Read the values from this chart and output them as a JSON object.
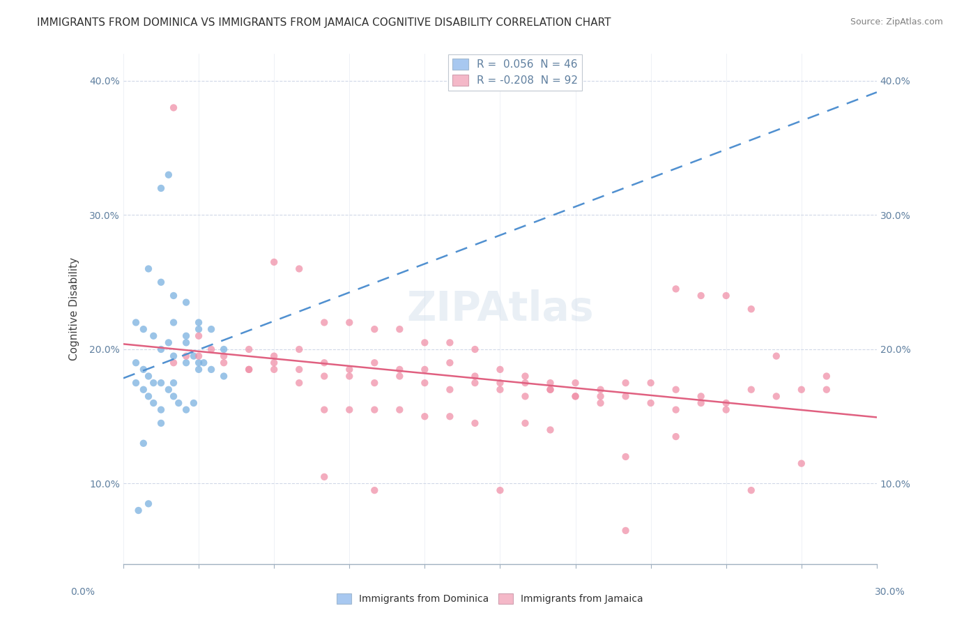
{
  "title": "IMMIGRANTS FROM DOMINICA VS IMMIGRANTS FROM JAMAICA COGNITIVE DISABILITY CORRELATION CHART",
  "source": "Source: ZipAtlas.com",
  "ylabel_label": "Cognitive Disability",
  "ylabel_labels": [
    "10.0%",
    "20.0%",
    "30.0%",
    "40.0%"
  ],
  "ylabel_values": [
    0.1,
    0.2,
    0.3,
    0.4
  ],
  "xlim": [
    0.0,
    0.3
  ],
  "ylim": [
    0.04,
    0.42
  ],
  "legend1_label": "R =  0.056  N = 46",
  "legend2_label": "R = -0.208  N = 92",
  "legend1_color": "#a8c8f0",
  "legend2_color": "#f4b8c8",
  "series1_color": "#7ab0e0",
  "series2_color": "#f090a8",
  "trendline1_color": "#5090d0",
  "trendline2_color": "#e06080",
  "watermark": "ZIPAtlas",
  "background_color": "#ffffff",
  "grid_color": "#d0d8e8",
  "axis_color": "#6080a0",
  "title_color": "#303030",
  "source_color": "#808080",
  "bottom_legend1": "Immigrants from Dominica",
  "bottom_legend2": "Immigrants from Jamaica",
  "dominica_points": [
    [
      0.02,
      0.22
    ],
    [
      0.025,
      0.21
    ],
    [
      0.03,
      0.215
    ],
    [
      0.035,
      0.215
    ],
    [
      0.04,
      0.2
    ],
    [
      0.01,
      0.26
    ],
    [
      0.015,
      0.25
    ],
    [
      0.02,
      0.24
    ],
    [
      0.025,
      0.235
    ],
    [
      0.03,
      0.22
    ],
    [
      0.005,
      0.22
    ],
    [
      0.008,
      0.215
    ],
    [
      0.012,
      0.21
    ],
    [
      0.015,
      0.2
    ],
    [
      0.018,
      0.205
    ],
    [
      0.02,
      0.195
    ],
    [
      0.025,
      0.19
    ],
    [
      0.028,
      0.195
    ],
    [
      0.03,
      0.185
    ],
    [
      0.032,
      0.19
    ],
    [
      0.005,
      0.19
    ],
    [
      0.008,
      0.185
    ],
    [
      0.01,
      0.18
    ],
    [
      0.012,
      0.175
    ],
    [
      0.015,
      0.175
    ],
    [
      0.018,
      0.17
    ],
    [
      0.02,
      0.165
    ],
    [
      0.022,
      0.16
    ],
    [
      0.025,
      0.155
    ],
    [
      0.028,
      0.16
    ],
    [
      0.005,
      0.175
    ],
    [
      0.008,
      0.17
    ],
    [
      0.01,
      0.165
    ],
    [
      0.012,
      0.16
    ],
    [
      0.015,
      0.155
    ],
    [
      0.006,
      0.08
    ],
    [
      0.01,
      0.085
    ],
    [
      0.008,
      0.13
    ],
    [
      0.015,
      0.32
    ],
    [
      0.018,
      0.33
    ],
    [
      0.025,
      0.205
    ],
    [
      0.03,
      0.19
    ],
    [
      0.035,
      0.185
    ],
    [
      0.04,
      0.18
    ],
    [
      0.02,
      0.175
    ],
    [
      0.015,
      0.145
    ]
  ],
  "jamaica_points": [
    [
      0.02,
      0.19
    ],
    [
      0.025,
      0.195
    ],
    [
      0.03,
      0.21
    ],
    [
      0.035,
      0.2
    ],
    [
      0.04,
      0.195
    ],
    [
      0.05,
      0.185
    ],
    [
      0.06,
      0.19
    ],
    [
      0.07,
      0.185
    ],
    [
      0.08,
      0.18
    ],
    [
      0.09,
      0.18
    ],
    [
      0.1,
      0.175
    ],
    [
      0.11,
      0.18
    ],
    [
      0.12,
      0.175
    ],
    [
      0.13,
      0.17
    ],
    [
      0.14,
      0.175
    ],
    [
      0.15,
      0.17
    ],
    [
      0.16,
      0.165
    ],
    [
      0.17,
      0.17
    ],
    [
      0.18,
      0.165
    ],
    [
      0.19,
      0.16
    ],
    [
      0.2,
      0.165
    ],
    [
      0.21,
      0.16
    ],
    [
      0.22,
      0.155
    ],
    [
      0.23,
      0.16
    ],
    [
      0.24,
      0.155
    ],
    [
      0.05,
      0.2
    ],
    [
      0.06,
      0.195
    ],
    [
      0.07,
      0.2
    ],
    [
      0.08,
      0.19
    ],
    [
      0.09,
      0.185
    ],
    [
      0.1,
      0.19
    ],
    [
      0.11,
      0.185
    ],
    [
      0.12,
      0.185
    ],
    [
      0.13,
      0.19
    ],
    [
      0.14,
      0.18
    ],
    [
      0.15,
      0.185
    ],
    [
      0.16,
      0.18
    ],
    [
      0.17,
      0.175
    ],
    [
      0.18,
      0.175
    ],
    [
      0.19,
      0.17
    ],
    [
      0.02,
      0.38
    ],
    [
      0.06,
      0.265
    ],
    [
      0.07,
      0.26
    ],
    [
      0.08,
      0.22
    ],
    [
      0.09,
      0.22
    ],
    [
      0.1,
      0.215
    ],
    [
      0.11,
      0.215
    ],
    [
      0.12,
      0.205
    ],
    [
      0.13,
      0.205
    ],
    [
      0.14,
      0.2
    ],
    [
      0.2,
      0.175
    ],
    [
      0.21,
      0.175
    ],
    [
      0.22,
      0.17
    ],
    [
      0.23,
      0.165
    ],
    [
      0.24,
      0.16
    ],
    [
      0.22,
      0.245
    ],
    [
      0.23,
      0.24
    ],
    [
      0.24,
      0.24
    ],
    [
      0.25,
      0.23
    ],
    [
      0.26,
      0.195
    ],
    [
      0.03,
      0.195
    ],
    [
      0.04,
      0.19
    ],
    [
      0.05,
      0.185
    ],
    [
      0.06,
      0.185
    ],
    [
      0.07,
      0.175
    ],
    [
      0.15,
      0.175
    ],
    [
      0.16,
      0.175
    ],
    [
      0.17,
      0.17
    ],
    [
      0.18,
      0.165
    ],
    [
      0.19,
      0.165
    ],
    [
      0.08,
      0.155
    ],
    [
      0.09,
      0.155
    ],
    [
      0.1,
      0.155
    ],
    [
      0.11,
      0.155
    ],
    [
      0.12,
      0.15
    ],
    [
      0.13,
      0.15
    ],
    [
      0.14,
      0.145
    ],
    [
      0.16,
      0.145
    ],
    [
      0.17,
      0.14
    ],
    [
      0.22,
      0.135
    ],
    [
      0.2,
      0.12
    ],
    [
      0.25,
      0.17
    ],
    [
      0.26,
      0.165
    ],
    [
      0.27,
      0.17
    ],
    [
      0.28,
      0.17
    ],
    [
      0.15,
      0.095
    ],
    [
      0.2,
      0.065
    ],
    [
      0.25,
      0.095
    ],
    [
      0.27,
      0.115
    ],
    [
      0.28,
      0.18
    ],
    [
      0.08,
      0.105
    ],
    [
      0.1,
      0.095
    ]
  ]
}
